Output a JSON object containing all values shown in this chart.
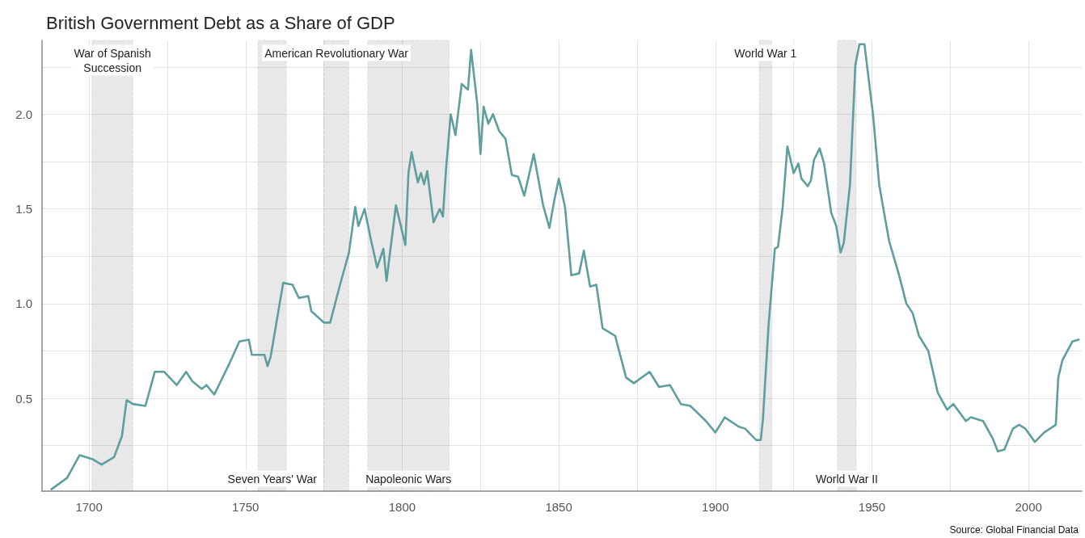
{
  "chart_data": {
    "type": "line",
    "title": "British Government Debt as a Share of GDP",
    "x": [
      1688,
      1693,
      1697,
      1701,
      1704,
      1708,
      1710.5,
      1712,
      1714,
      1718,
      1721,
      1724,
      1728,
      1731,
      1733,
      1736,
      1737.5,
      1740,
      1745,
      1748,
      1751,
      1752,
      1756,
      1757,
      1758,
      1762,
      1765,
      1767,
      1770,
      1771,
      1775,
      1777,
      1780,
      1783,
      1785,
      1786,
      1788,
      1790,
      1792,
      1794,
      1795,
      1798,
      1801,
      1802,
      1803,
      1805,
      1806,
      1807,
      1808,
      1810,
      1812,
      1813,
      1814,
      1815.5,
      1817,
      1819,
      1821,
      1822,
      1824,
      1825,
      1826,
      1827.5,
      1829,
      1831,
      1833,
      1835,
      1837,
      1839,
      1842,
      1845,
      1847,
      1848.5,
      1850,
      1852,
      1854,
      1856.5,
      1858,
      1860,
      1862,
      1864,
      1868,
      1871.5,
      1874,
      1879,
      1882,
      1885.5,
      1889,
      1892,
      1897,
      1900,
      1903,
      1907.5,
      1909.5,
      1913,
      1914.5,
      1915.2,
      1917,
      1919,
      1920,
      1921.5,
      1923,
      1925,
      1926.5,
      1927.5,
      1929.5,
      1930.5,
      1931.5,
      1933.3,
      1934.7,
      1937,
      1938.6,
      1940,
      1941,
      1943,
      1944.7,
      1946,
      1947.6,
      1950.4,
      1952.3,
      1954.2,
      1955.5,
      1958.5,
      1961,
      1963,
      1965,
      1968,
      1971,
      1974,
      1976,
      1980,
      1981.6,
      1985.5,
      1988.5,
      1990.2,
      1992.3,
      1995,
      1997,
      1999,
      2002,
      2005,
      2008.7,
      2009.5,
      2010.8,
      2014,
      2016
    ],
    "series": [
      {
        "color": "#5e9e9d",
        "values": [
          0.02,
          0.08,
          0.2,
          0.18,
          0.15,
          0.19,
          0.3,
          0.49,
          0.47,
          0.46,
          0.64,
          0.64,
          0.57,
          0.64,
          0.59,
          0.55,
          0.57,
          0.52,
          0.69,
          0.8,
          0.81,
          0.73,
          0.73,
          0.67,
          0.72,
          1.11,
          1.1,
          1.03,
          1.04,
          0.96,
          0.9,
          0.9,
          1.09,
          1.27,
          1.51,
          1.41,
          1.5,
          1.34,
          1.19,
          1.29,
          1.12,
          1.52,
          1.31,
          1.69,
          1.8,
          1.64,
          1.69,
          1.63,
          1.7,
          1.43,
          1.5,
          1.46,
          1.71,
          2.0,
          1.89,
          2.16,
          2.13,
          2.34,
          2.05,
          1.79,
          2.04,
          1.95,
          2.0,
          1.91,
          1.87,
          1.68,
          1.67,
          1.57,
          1.79,
          1.52,
          1.4,
          1.54,
          1.66,
          1.51,
          1.15,
          1.16,
          1.28,
          1.09,
          1.1,
          0.87,
          0.83,
          0.61,
          0.58,
          0.64,
          0.56,
          0.57,
          0.47,
          0.46,
          0.38,
          0.32,
          0.4,
          0.35,
          0.34,
          0.28,
          0.28,
          0.39,
          0.89,
          1.29,
          1.3,
          1.51,
          1.83,
          1.69,
          1.74,
          1.66,
          1.62,
          1.65,
          1.76,
          1.82,
          1.74,
          1.48,
          1.41,
          1.27,
          1.32,
          1.63,
          2.26,
          2.37,
          2.37,
          1.99,
          1.63,
          1.45,
          1.33,
          1.16,
          1.0,
          0.95,
          0.83,
          0.75,
          0.53,
          0.44,
          0.47,
          0.38,
          0.4,
          0.38,
          0.29,
          0.22,
          0.23,
          0.34,
          0.36,
          0.34,
          0.27,
          0.32,
          0.36,
          0.61,
          0.7,
          0.8,
          0.81
        ]
      }
    ],
    "xlim": [
      1685,
      2017
    ],
    "xticks": [
      1700,
      {
        "value": 1725,
        "label": null
      },
      1750,
      {
        "value": 1775,
        "label": null
      },
      1800,
      {
        "value": 1825,
        "label": null
      },
      1850,
      {
        "value": 1875,
        "label": null
      },
      1900,
      {
        "value": 1925,
        "label": null
      },
      1950,
      {
        "value": 1975,
        "label": null
      },
      2000
    ],
    "ylim": [
      0.01,
      2.39
    ],
    "yticks": [
      {
        "value": 0.25,
        "label": null
      },
      0.5,
      {
        "value": 0.75,
        "label": null
      },
      {
        "value": 1,
        "label": "1.0"
      },
      {
        "value": 1.25,
        "label": null
      },
      1.5,
      {
        "value": 1.75,
        "label": null
      },
      {
        "value": 2,
        "label": "2.0"
      },
      {
        "value": 2.25,
        "label": null
      }
    ],
    "grid": true,
    "bands": [
      {
        "axis": "x",
        "from": 1701,
        "to": 1714,
        "label": "War of Spanish\nSuccession",
        "color": "#808080"
      },
      {
        "axis": "x",
        "from": 1754,
        "to": 1763,
        "label": "Seven Years' War",
        "color": "#808080"
      },
      {
        "axis": "x",
        "from": 1775,
        "to": 1783,
        "label": "American Revolutionary War",
        "color": "#808080"
      },
      {
        "axis": "x",
        "from": 1789,
        "to": 1815,
        "label": "Napoleonic Wars",
        "color": "#808080"
      },
      {
        "axis": "x",
        "from": 1914,
        "to": 1918,
        "label": "World War 1",
        "color": "#808080"
      },
      {
        "axis": "x",
        "from": 1939,
        "to": 1945,
        "label": "World War II",
        "color": "#808080"
      }
    ],
    "annotations": [
      "Source: Global Financial Data"
    ]
  }
}
